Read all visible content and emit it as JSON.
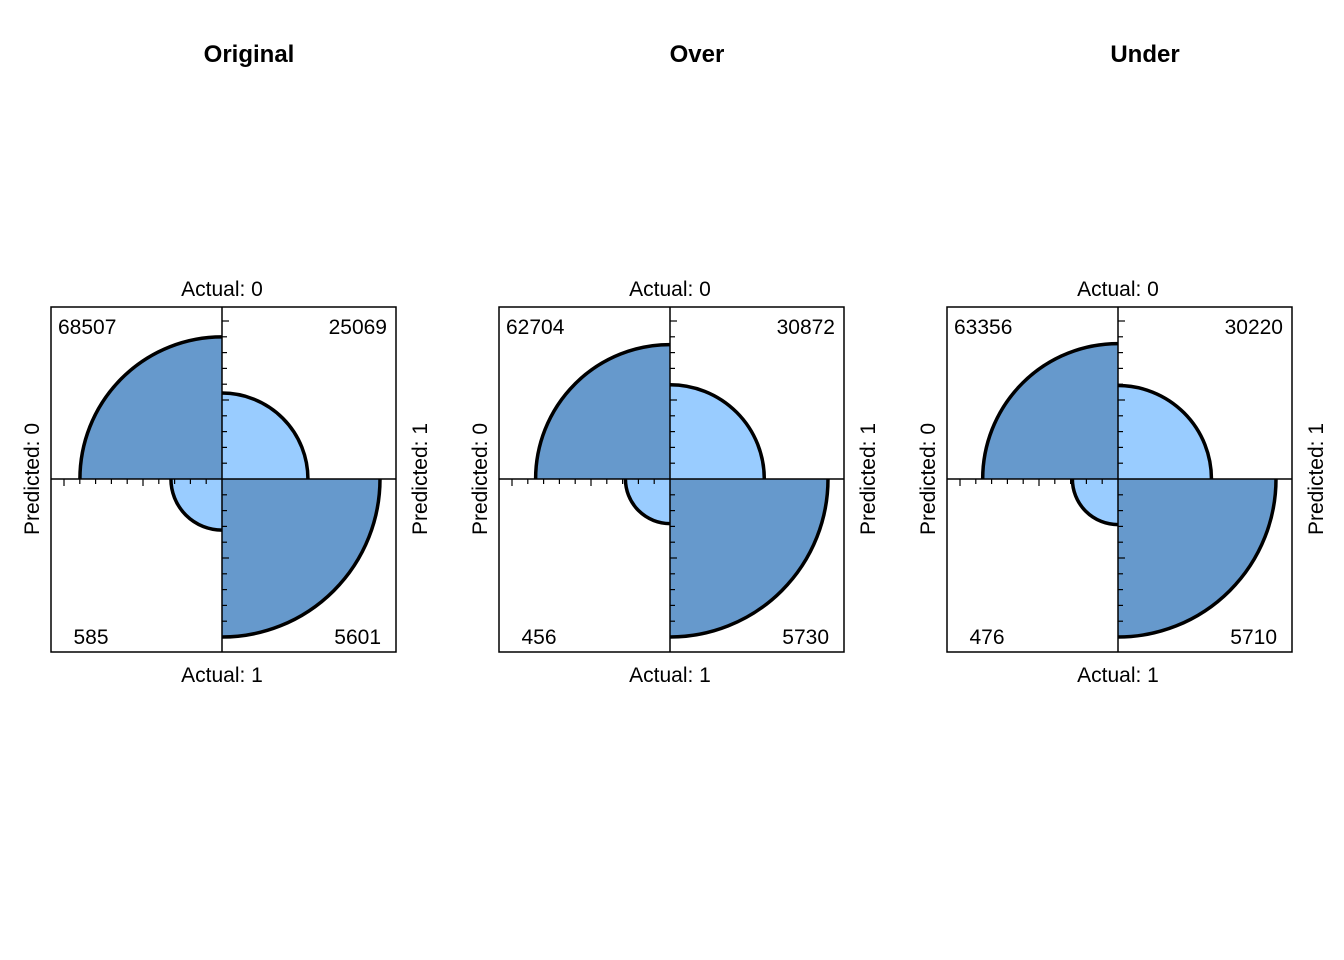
{
  "chart_data": [
    {
      "type": "fourfold",
      "title": "Original",
      "col_labels": [
        "Actual: 0",
        "Actual: 1"
      ],
      "row_labels": [
        "Predicted: 0",
        "Predicted: 1"
      ],
      "counts": {
        "actual0_predicted0": 68507,
        "actual0_predicted1": 25069,
        "actual1_predicted0": 585,
        "actual1_predicted1": 5601
      },
      "count_labels": {
        "actual0_predicted0": "68507",
        "actual0_predicted1": "25069",
        "actual1_predicted0": "585",
        "actual1_predicted1": "5601"
      }
    },
    {
      "type": "fourfold",
      "title": "Over",
      "col_labels": [
        "Actual: 0",
        "Actual: 1"
      ],
      "row_labels": [
        "Predicted: 0",
        "Predicted: 1"
      ],
      "counts": {
        "actual0_predicted0": 62704,
        "actual0_predicted1": 30872,
        "actual1_predicted0": 456,
        "actual1_predicted1": 5730
      },
      "count_labels": {
        "actual0_predicted0": "62704",
        "actual0_predicted1": "30872",
        "actual1_predicted0": "456",
        "actual1_predicted1": "5730"
      }
    },
    {
      "type": "fourfold",
      "title": "Under",
      "col_labels": [
        "Actual: 0",
        "Actual: 1"
      ],
      "row_labels": [
        "Predicted: 0",
        "Predicted: 1"
      ],
      "counts": {
        "actual0_predicted0": 63356,
        "actual0_predicted1": 30220,
        "actual1_predicted0": 476,
        "actual1_predicted1": 5710
      },
      "count_labels": {
        "actual0_predicted0": "63356",
        "actual0_predicted1": "30220",
        "actual1_predicted0": "476",
        "actual1_predicted1": "5710"
      }
    }
  ],
  "colors": {
    "dark_fill": "#6699cc",
    "light_fill": "#99ccff",
    "stroke": "#000000"
  }
}
